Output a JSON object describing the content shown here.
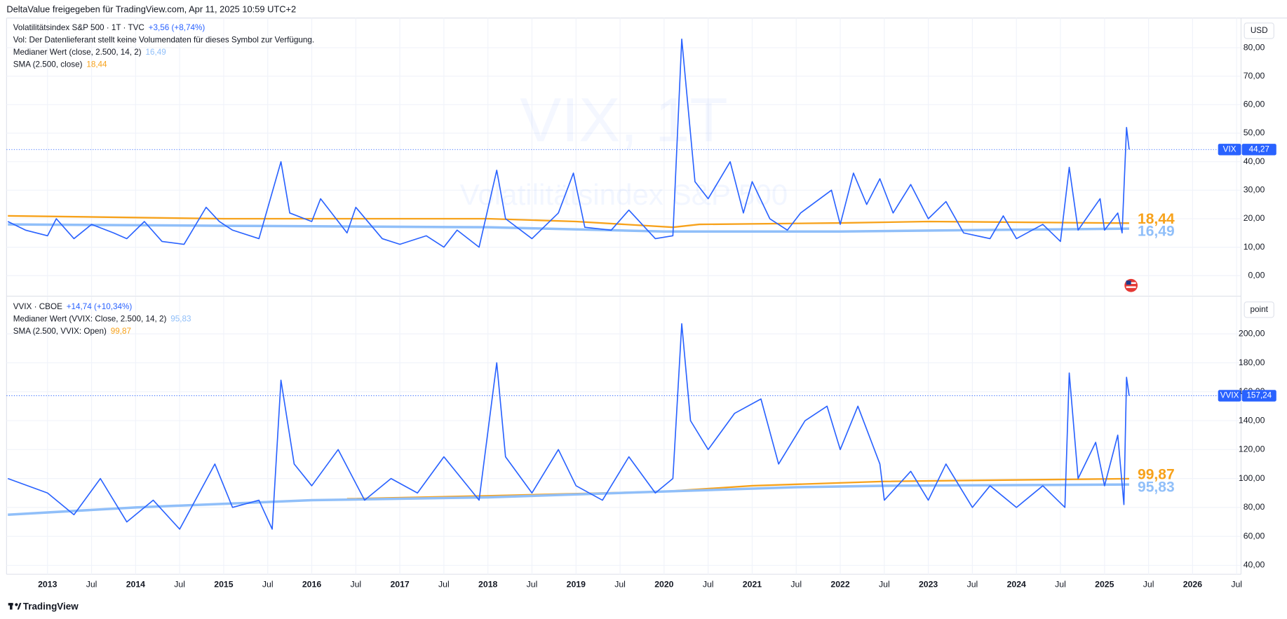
{
  "header": "DeltaValue freigegeben für TradingView.com, Apr 11, 2025 10:59 UTC+2",
  "footer": "TradingView",
  "chart_data": [
    {
      "type": "line",
      "title": "Volatilitätsindex S&P 500 · 1T · TVC",
      "change": "+3,56 (+8,74%)",
      "note": "Vol: Der Datenlieferant stellt keine Volumendaten für dieses Symbol zur Verfügung.",
      "watermark": "VIX, 1T",
      "watermark_subtitle": "Volatilitätsindex S&P 500",
      "unit": "USD",
      "symbol": "VIX",
      "xlim": [
        2012.535,
        2026.55
      ],
      "ylim": [
        -6.9,
        90.4
      ],
      "yticks": [
        {
          "value": 0,
          "label": "0,00"
        },
        {
          "value": 10,
          "label": "10,00"
        },
        {
          "value": 20,
          "label": "20,00"
        },
        {
          "value": 30,
          "label": "30,00"
        },
        {
          "value": 40,
          "label": "40,00"
        },
        {
          "value": 50,
          "label": "50,00"
        },
        {
          "value": 60,
          "label": "60,00"
        },
        {
          "value": 70,
          "label": "70,00"
        },
        {
          "value": 80,
          "label": "80,00"
        }
      ],
      "grid": true,
      "series": [
        {
          "name": "Volatilitätsindex S&P 500 · 1T · TVC",
          "color": "#2962ff",
          "x": [
            2012.55,
            2012.75,
            2013.0,
            2013.1,
            2013.3,
            2013.5,
            2013.75,
            2013.9,
            2014.1,
            2014.3,
            2014.55,
            2014.8,
            2014.95,
            2015.1,
            2015.4,
            2015.65,
            2015.75,
            2016.0,
            2016.1,
            2016.4,
            2016.5,
            2016.8,
            2017.0,
            2017.3,
            2017.5,
            2017.65,
            2017.9,
            2018.1,
            2018.2,
            2018.5,
            2018.8,
            2018.97,
            2019.1,
            2019.4,
            2019.6,
            2019.9,
            2020.1,
            2020.2,
            2020.35,
            2020.5,
            2020.75,
            2020.9,
            2021.0,
            2021.2,
            2021.4,
            2021.55,
            2021.9,
            2022.0,
            2022.15,
            2022.3,
            2022.45,
            2022.6,
            2022.8,
            2023.0,
            2023.2,
            2023.4,
            2023.7,
            2023.85,
            2024.0,
            2024.3,
            2024.5,
            2024.6,
            2024.7,
            2024.95,
            2025.0,
            2025.15,
            2025.2,
            2025.25,
            2025.28
          ],
          "values": [
            19,
            16,
            14,
            20,
            13,
            18,
            15,
            13,
            19,
            12,
            11,
            24,
            19,
            16,
            13,
            40,
            22,
            19,
            27,
            15,
            24,
            13,
            11,
            14,
            10,
            16,
            10,
            37,
            20,
            13,
            22,
            36,
            17,
            16,
            23,
            13,
            14,
            83,
            33,
            27,
            40,
            22,
            33,
            20,
            16,
            22,
            30,
            18,
            36,
            25,
            34,
            22,
            32,
            20,
            26,
            15,
            13,
            21,
            13,
            18,
            12,
            38,
            16,
            27,
            16,
            22,
            15,
            52,
            44.27
          ],
          "value_labels": [
            null,
            null,
            null,
            null,
            null,
            null,
            null,
            null,
            null,
            null,
            null,
            null,
            null,
            null,
            null,
            null,
            null,
            null,
            null,
            null,
            null,
            null,
            null,
            null,
            null,
            null,
            null,
            null,
            null,
            null,
            null,
            null,
            null,
            null,
            null,
            null,
            null,
            null,
            null,
            null,
            null,
            null,
            null,
            null,
            null,
            null,
            null,
            null,
            null,
            null,
            null,
            null,
            null,
            null,
            null,
            null,
            null,
            null,
            null,
            null,
            null,
            null,
            null,
            null,
            null,
            null,
            null,
            null,
            "44,27"
          ]
        },
        {
          "name": "Medianer Wert (close, 2.500, 14, 2)",
          "color": "#90bff9",
          "x": [
            2012.55,
            2015,
            2018,
            2020,
            2022,
            2023.5,
            2025.28
          ],
          "values": [
            18,
            17.5,
            17,
            15.5,
            15.5,
            16,
            16.49
          ],
          "value_labels": [
            null,
            null,
            null,
            null,
            null,
            null,
            "16,49"
          ]
        },
        {
          "name": "SMA (2.500, close)",
          "color": "#f7a21b",
          "x": [
            2012.55,
            2015,
            2018,
            2019,
            2020.1,
            2020.4,
            2022,
            2023,
            2025.28
          ],
          "values": [
            21,
            20,
            20,
            19,
            17,
            18,
            18.5,
            19,
            18.44
          ],
          "value_labels": [
            null,
            null,
            null,
            null,
            null,
            null,
            null,
            null,
            "18,44"
          ]
        }
      ]
    },
    {
      "type": "line",
      "title": "VVIX · CBOE",
      "change": "+14,74 (+10,34%)",
      "unit": "point",
      "symbol": "VVIX",
      "xlim": [
        2012.535,
        2026.55
      ],
      "ylim": [
        33.8,
        225.5
      ],
      "yticks": [
        {
          "value": 40,
          "label": "40,00"
        },
        {
          "value": 60,
          "label": "60,00"
        },
        {
          "value": 80,
          "label": "80,00"
        },
        {
          "value": 100,
          "label": "100,00"
        },
        {
          "value": 120,
          "label": "120,00"
        },
        {
          "value": 140,
          "label": "140,00"
        },
        {
          "value": 160,
          "label": "160,00"
        },
        {
          "value": 180,
          "label": "180,00"
        },
        {
          "value": 200,
          "label": "200,00"
        }
      ],
      "xticks": [
        2013,
        {
          "value": 2013.5,
          "label": "Jul"
        },
        2014,
        {
          "value": 2014.5,
          "label": "Jul"
        },
        2015,
        {
          "value": 2015.5,
          "label": "Jul"
        },
        2016,
        {
          "value": 2016.5,
          "label": "Jul"
        },
        2017,
        {
          "value": 2017.5,
          "label": "Jul"
        },
        2018,
        {
          "value": 2018.5,
          "label": "Jul"
        },
        2019,
        {
          "value": 2019.5,
          "label": "Jul"
        },
        2020,
        {
          "value": 2020.5,
          "label": "Jul"
        },
        2021,
        {
          "value": 2021.5,
          "label": "Jul"
        },
        2022,
        {
          "value": 2022.5,
          "label": "Jul"
        },
        2023,
        {
          "value": 2023.5,
          "label": "Jul"
        },
        2024,
        {
          "value": 2024.5,
          "label": "Jul"
        },
        2025,
        {
          "value": 2025.5,
          "label": "Jul"
        },
        2026,
        {
          "value": 2026.5,
          "label": "Jul"
        }
      ],
      "grid": true,
      "series": [
        {
          "name": "VVIX · CBOE",
          "color": "#2962ff",
          "x": [
            2012.55,
            2013.0,
            2013.3,
            2013.6,
            2013.9,
            2014.2,
            2014.5,
            2014.9,
            2015.1,
            2015.4,
            2015.55,
            2015.65,
            2015.8,
            2016.0,
            2016.3,
            2016.6,
            2016.9,
            2017.2,
            2017.5,
            2017.9,
            2018.1,
            2018.2,
            2018.5,
            2018.8,
            2019.0,
            2019.3,
            2019.6,
            2019.9,
            2020.1,
            2020.2,
            2020.3,
            2020.5,
            2020.8,
            2021.1,
            2021.3,
            2021.6,
            2021.85,
            2022.0,
            2022.2,
            2022.45,
            2022.5,
            2022.8,
            2023.0,
            2023.2,
            2023.5,
            2023.7,
            2024.0,
            2024.3,
            2024.55,
            2024.6,
            2024.7,
            2024.9,
            2025.0,
            2025.15,
            2025.22,
            2025.25,
            2025.28
          ],
          "values": [
            100,
            90,
            75,
            100,
            70,
            85,
            65,
            110,
            80,
            85,
            65,
            168,
            110,
            95,
            120,
            85,
            100,
            90,
            115,
            85,
            180,
            115,
            90,
            120,
            95,
            85,
            115,
            90,
            100,
            207,
            140,
            120,
            145,
            155,
            110,
            140,
            150,
            120,
            150,
            110,
            85,
            105,
            85,
            110,
            80,
            95,
            80,
            95,
            80,
            173,
            100,
            125,
            95,
            130,
            82,
            170,
            157.24
          ],
          "value_labels": [
            null,
            null,
            null,
            null,
            null,
            null,
            null,
            null,
            null,
            null,
            null,
            null,
            null,
            null,
            null,
            null,
            null,
            null,
            null,
            null,
            null,
            null,
            null,
            null,
            null,
            null,
            null,
            null,
            null,
            null,
            null,
            null,
            null,
            null,
            null,
            null,
            null,
            null,
            null,
            null,
            null,
            null,
            null,
            null,
            null,
            null,
            null,
            null,
            null,
            null,
            null,
            null,
            null,
            null,
            null,
            null,
            "157,24"
          ]
        },
        {
          "name": "Medianer Wert (VVIX: Close, 2.500, 14, 2)",
          "color": "#90bff9",
          "x": [
            2012.55,
            2014,
            2016,
            2018,
            2020,
            2021.5,
            2022.5,
            2025.28
          ],
          "values": [
            75,
            80,
            85,
            87,
            91,
            94,
            95,
            95.83
          ],
          "value_labels": [
            null,
            null,
            null,
            null,
            null,
            null,
            null,
            "95,83"
          ]
        },
        {
          "name": "SMA (2.500, VVIX: Open)",
          "color": "#f7a21b",
          "x": [
            2016.4,
            2018,
            2020,
            2021,
            2022.5,
            2025.28
          ],
          "values": [
            86,
            88,
            91,
            95,
            98,
            99.87
          ],
          "value_labels": [
            null,
            null,
            null,
            null,
            null,
            "99,87"
          ]
        }
      ]
    }
  ]
}
